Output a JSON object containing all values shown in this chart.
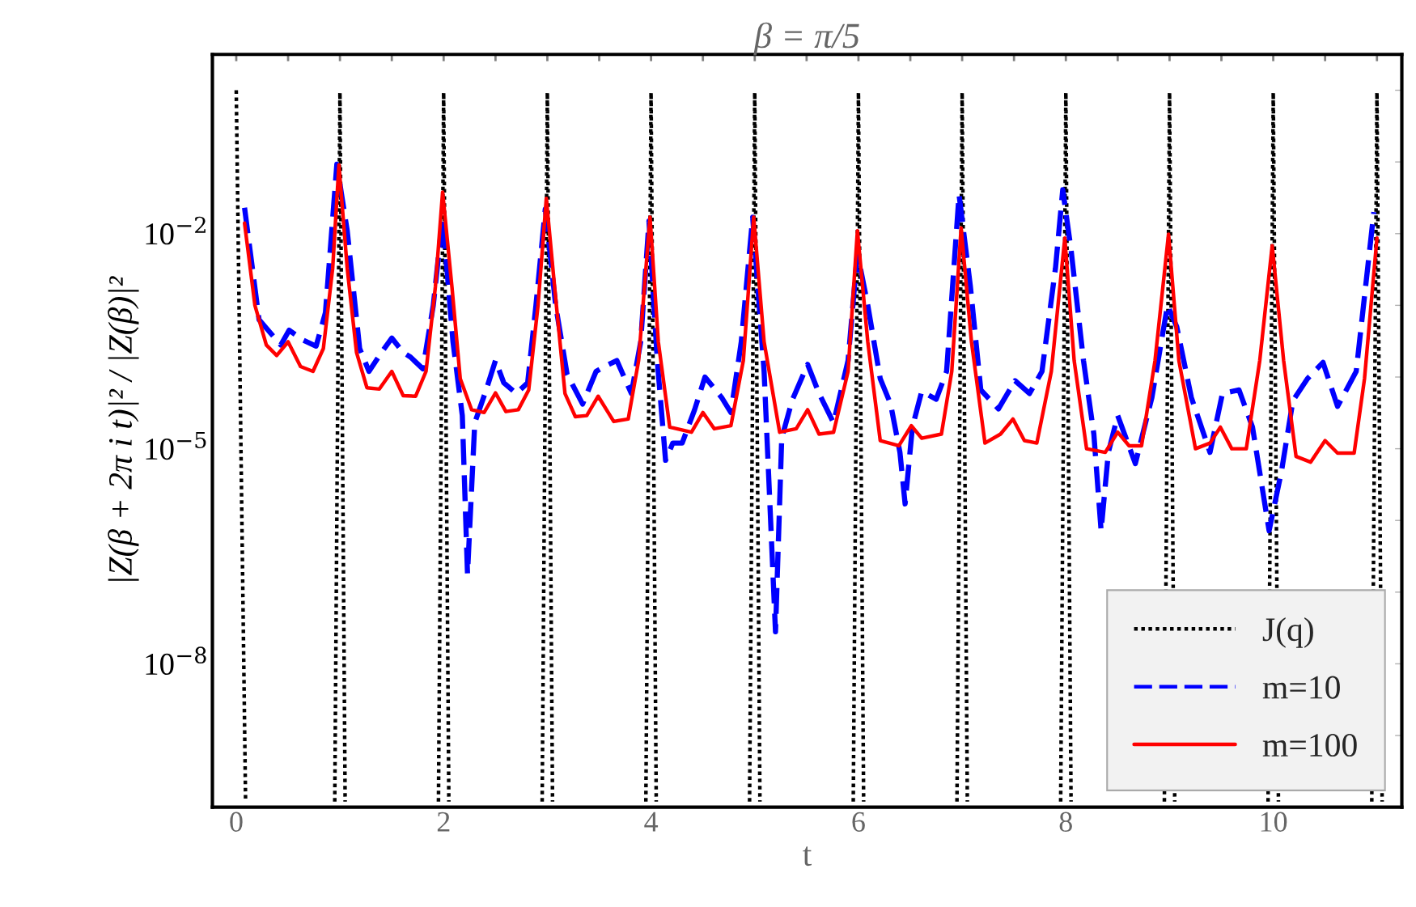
{
  "chart_data": {
    "type": "line",
    "title": "β = π/5",
    "xlabel": "t",
    "ylabel": "|Z(β + 2π i t)|² / |Z(β)|²",
    "log": "y",
    "grid": false,
    "legend": "bottom right",
    "xlim": [
      -0.23,
      11.24
    ],
    "ylim": [
      1e-10,
      3.16
    ],
    "xticks": [
      {
        "value": 0,
        "label": "0"
      },
      {
        "value": 0.5,
        "label": null
      },
      {
        "value": 1,
        "label": null
      },
      {
        "value": 1.5,
        "label": null
      },
      {
        "value": 2,
        "label": "2"
      },
      {
        "value": 2.5,
        "label": null
      },
      {
        "value": 3,
        "label": null
      },
      {
        "value": 3.5,
        "label": null
      },
      {
        "value": 4,
        "label": "4"
      },
      {
        "value": 4.5,
        "label": null
      },
      {
        "value": 5,
        "label": null
      },
      {
        "value": 5.5,
        "label": null
      },
      {
        "value": 6,
        "label": "6"
      },
      {
        "value": 6.5,
        "label": null
      },
      {
        "value": 7,
        "label": null
      },
      {
        "value": 7.5,
        "label": null
      },
      {
        "value": 8,
        "label": "8"
      },
      {
        "value": 8.5,
        "label": null
      },
      {
        "value": 9,
        "label": null
      },
      {
        "value": 9.5,
        "label": null
      },
      {
        "value": 10,
        "label": "10"
      },
      {
        "value": 10.5,
        "label": null
      },
      {
        "value": 11,
        "label": null
      }
    ],
    "yticks": [
      {
        "value": 1,
        "label": null
      },
      {
        "value": 0.1,
        "label": null
      },
      {
        "value": 0.01,
        "label": "10$^{−2}$"
      },
      {
        "value": 0.001,
        "label": null
      },
      {
        "value": 0.0001,
        "label": null
      },
      {
        "value": 1e-05,
        "label": "10$^{−5}$"
      },
      {
        "value": 1e-06,
        "label": null
      },
      {
        "value": 1e-07,
        "label": null
      },
      {
        "value": 1e-08,
        "label": "10$^{−8}$"
      },
      {
        "value": 1e-09,
        "label": null
      }
    ],
    "series": [
      {
        "name": "J(q)",
        "color": "#000000",
        "line_style": "dotted",
        "x": [
          0,
          0.09,
          0.5,
          0.95,
          1,
          1.05,
          1.5,
          1.95,
          2,
          2.05,
          2.5,
          2.95,
          3,
          3.05,
          3.5,
          3.95,
          4,
          4.05,
          4.5,
          4.95,
          5,
          5.05,
          5.5,
          5.95,
          6,
          6.05,
          6.5,
          6.95,
          7,
          7.05,
          7.5,
          7.95,
          8,
          8.05,
          8.5,
          8.95,
          9,
          9.05,
          9.5,
          9.95,
          10,
          10.05,
          10.5,
          10.95,
          11,
          11.05
        ],
        "values": [
          1.0,
          1.2e-10,
          null,
          1.2e-10,
          0.93,
          1.2e-10,
          null,
          1.2e-10,
          0.93,
          1.2e-10,
          null,
          1.2e-10,
          0.93,
          1.2e-10,
          null,
          1.2e-10,
          0.93,
          1.2e-10,
          null,
          1.2e-10,
          0.93,
          1.2e-10,
          null,
          1.2e-10,
          0.93,
          1.2e-10,
          null,
          1.2e-10,
          0.93,
          1.2e-10,
          null,
          1.2e-10,
          0.93,
          1.2e-10,
          null,
          1.2e-10,
          0.93,
          1.2e-10,
          null,
          1.2e-10,
          0.93,
          1.2e-10,
          null,
          1.2e-10,
          0.93,
          1.2e-10
        ]
      },
      {
        "name": "m=10",
        "color": "#0000ff",
        "line_style": "dashed",
        "x": [
          0.08,
          0.22,
          0.43,
          0.51,
          0.64,
          0.77,
          0.86,
          0.97,
          1.07,
          1.19,
          1.28,
          1.4,
          1.5,
          1.61,
          1.68,
          1.8,
          1.9,
          1.99,
          2.09,
          2.18,
          2.23,
          2.3,
          2.41,
          2.5,
          2.58,
          2.7,
          2.81,
          2.89,
          2.98,
          3.08,
          3.19,
          3.34,
          3.47,
          3.55,
          3.67,
          3.81,
          3.9,
          3.98,
          4.06,
          4.14,
          4.21,
          4.3,
          4.42,
          4.52,
          4.68,
          4.77,
          4.87,
          4.98,
          5.09,
          5.2,
          5.26,
          5.36,
          5.51,
          5.62,
          5.76,
          5.9,
          5.99,
          6.09,
          6.21,
          6.31,
          6.4,
          6.45,
          6.52,
          6.61,
          6.75,
          6.85,
          6.97,
          7.08,
          7.18,
          7.35,
          7.51,
          7.65,
          7.77,
          7.9,
          7.97,
          8.05,
          8.17,
          8.27,
          8.34,
          8.41,
          8.5,
          8.67,
          8.83,
          8.98,
          9.07,
          9.21,
          9.39,
          9.51,
          9.67,
          9.8,
          9.96,
          10.08,
          10.19,
          10.33,
          10.48,
          10.62,
          10.8,
          10.97
        ],
        "values": [
          0.023,
          0.00063,
          0.00028,
          0.00045,
          0.00033,
          0.00027,
          0.00079,
          0.093,
          0.011,
          0.00025,
          0.00012,
          0.00022,
          0.00035,
          0.00022,
          0.00019,
          0.00013,
          0.001,
          0.017,
          0.00031,
          2.9e-05,
          1.8e-07,
          2.3e-05,
          6.6e-05,
          0.00017,
          8.3e-05,
          5.9e-05,
          8.3e-05,
          0.001,
          0.022,
          0.001,
          0.00011,
          4.2e-05,
          0.00012,
          0.00014,
          0.00017,
          5.9e-05,
          0.00031,
          0.015,
          0.00017,
          6.9e-06,
          1.2e-05,
          1.2e-05,
          3.5e-05,
          0.0001,
          5.2e-05,
          3.2e-05,
          0.00031,
          0.017,
          0.00012,
          2.8e-08,
          1.4e-05,
          4.7e-05,
          0.00015,
          5.9e-05,
          2.3e-05,
          0.00017,
          0.0054,
          0.001,
          9.5e-05,
          4.2e-05,
          8.9e-06,
          1.7e-06,
          2e-05,
          6.3e-05,
          4.9e-05,
          0.00012,
          0.035,
          0.0018,
          6.6e-05,
          3.6e-05,
          8.9e-05,
          5.9e-05,
          0.00012,
          0.0033,
          0.041,
          0.006,
          0.00017,
          1.6e-05,
          7.2e-07,
          8.9e-06,
          2.9e-05,
          6.2e-06,
          5.2e-05,
          0.001,
          0.0005,
          5.2e-05,
          8.9e-06,
          5.9e-05,
          6.6e-05,
          2e-05,
          7.2e-07,
          4.9e-06,
          4.7e-05,
          9.5e-05,
          0.00016,
          3.9e-05,
          0.00012,
          0.02
        ]
      },
      {
        "name": "m=100",
        "color": "#ff0000",
        "line_style": "solid",
        "x": [
          0.08,
          0.18,
          0.29,
          0.39,
          0.5,
          0.62,
          0.74,
          0.84,
          0.93,
          0.99,
          1.07,
          1.16,
          1.26,
          1.38,
          1.5,
          1.61,
          1.73,
          1.83,
          1.92,
          1.99,
          2.08,
          2.16,
          2.27,
          2.39,
          2.5,
          2.6,
          2.72,
          2.82,
          2.91,
          2.99,
          3.07,
          3.17,
          3.27,
          3.38,
          3.49,
          3.64,
          3.78,
          3.88,
          3.99,
          4.07,
          4.18,
          4.39,
          4.5,
          4.61,
          4.77,
          4.89,
          4.99,
          5.09,
          5.24,
          5.4,
          5.51,
          5.62,
          5.76,
          5.9,
          5.99,
          6.09,
          6.21,
          6.39,
          6.51,
          6.61,
          6.8,
          6.9,
          6.99,
          7.09,
          7.22,
          7.37,
          7.49,
          7.6,
          7.72,
          7.86,
          7.99,
          8.08,
          8.2,
          8.38,
          8.5,
          8.61,
          8.73,
          8.86,
          8.99,
          9.09,
          9.25,
          9.39,
          9.49,
          9.6,
          9.74,
          9.87,
          9.99,
          10.1,
          10.22,
          10.36,
          10.5,
          10.62,
          10.78,
          10.88,
          11.0
        ],
        "values": [
          0.014,
          0.001,
          0.00028,
          0.0002,
          0.00031,
          0.00014,
          0.00012,
          0.00025,
          0.0033,
          0.091,
          0.0033,
          0.00022,
          7.1e-05,
          6.8e-05,
          0.00012,
          5.5e-05,
          5.4e-05,
          0.00012,
          0.0018,
          0.038,
          0.0018,
          9.5e-05,
          3.5e-05,
          3.2e-05,
          6e-05,
          3.3e-05,
          3.5e-05,
          6.6e-05,
          0.001,
          0.031,
          0.0018,
          5.9e-05,
          2.8e-05,
          2.9e-05,
          5.4e-05,
          2.4e-05,
          2.6e-05,
          0.00017,
          0.017,
          0.00031,
          2e-05,
          1.7e-05,
          3.2e-05,
          1.9e-05,
          2.1e-05,
          0.00017,
          0.017,
          0.00031,
          1.7e-05,
          1.9e-05,
          3.5e-05,
          1.6e-05,
          1.7e-05,
          0.00012,
          0.011,
          0.00031,
          1.3e-05,
          1.1e-05,
          2.1e-05,
          1.4e-05,
          1.6e-05,
          0.00012,
          0.012,
          0.00031,
          1.2e-05,
          1.6e-05,
          2.6e-05,
          1.3e-05,
          1.2e-05,
          0.00012,
          0.0087,
          0.00017,
          1e-05,
          8.9e-06,
          1.7e-05,
          1.1e-05,
          1.1e-05,
          0.00017,
          0.0098,
          0.00017,
          1e-05,
          1.2e-05,
          2e-05,
          1e-05,
          1e-05,
          0.00017,
          0.0068,
          0.00017,
          7.8e-06,
          6.5e-06,
          1.3e-05,
          8.7e-06,
          8.7e-06,
          9.5e-05,
          0.0087
        ]
      }
    ]
  }
}
